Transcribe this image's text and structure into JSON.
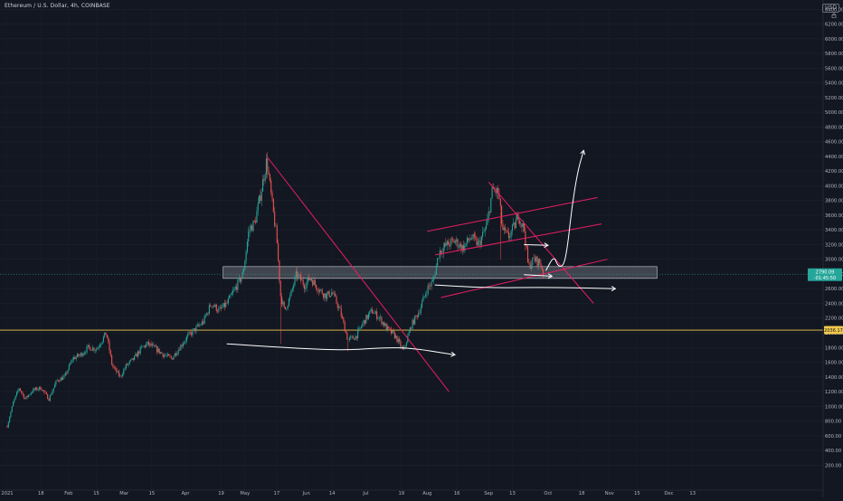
{
  "header": {
    "symbol_title": "Ethereum / U.S. Dollar, 4h, COINBASE",
    "currency": "USD"
  },
  "colors": {
    "background": "#131722",
    "candle_up": "#26a69a",
    "candle_down": "#ef5350",
    "trendline": "#e91e63",
    "support_line": "#f2c94c",
    "drawing": "#ffffff",
    "zone_fill": "#9598a1",
    "price_badge": "#26a69a"
  },
  "price_labels": {
    "last_price": "2790.09",
    "countdown": "-01:45:50",
    "support_price": "2036.17"
  },
  "chart_data": {
    "type": "candlestick",
    "title": "Ethereum / U.S. Dollar, 4h, COINBASE",
    "ylim": [
      0,
      6600
    ],
    "y_ticks": [
      200,
      400,
      600,
      800,
      1000,
      1200,
      1400,
      1600,
      1800,
      2000,
      2200,
      2400,
      2600,
      2800,
      3000,
      3200,
      3400,
      3600,
      3800,
      4000,
      4200,
      4400,
      4600,
      4800,
      5000,
      5200,
      5400,
      5600,
      5800,
      6000,
      6200,
      6400
    ],
    "y_tick_labels": [
      "200.00",
      "400.00",
      "600.00",
      "800.00",
      "1000.00",
      "1200.00",
      "1400.00",
      "1600.00",
      "1800.00",
      "2000.00",
      "2200.00",
      "2400.00",
      "2600.00",
      "2800.00",
      "3000.00",
      "3200.00",
      "3400.00",
      "3600.00",
      "3800.00",
      "4000.00",
      "4200.00",
      "4400.00",
      "4600.00",
      "4800.00",
      "5000.00",
      "5200.00",
      "5400.00",
      "5600.00",
      "5800.00",
      "6000.00",
      "6200.00",
      "6400.00"
    ],
    "x_ticks": [
      {
        "label": "2021",
        "date": "2021-01-01"
      },
      {
        "label": "18",
        "date": "2021-01-18"
      },
      {
        "label": "Feb",
        "date": "2021-02-01"
      },
      {
        "label": "15",
        "date": "2021-02-15"
      },
      {
        "label": "Mar",
        "date": "2021-03-01"
      },
      {
        "label": "15",
        "date": "2021-03-15"
      },
      {
        "label": "Apr",
        "date": "2021-04-01"
      },
      {
        "label": "19",
        "date": "2021-04-19"
      },
      {
        "label": "May",
        "date": "2021-05-01"
      },
      {
        "label": "17",
        "date": "2021-05-17"
      },
      {
        "label": "Jun",
        "date": "2021-06-01"
      },
      {
        "label": "14",
        "date": "2021-06-14"
      },
      {
        "label": "Jul",
        "date": "2021-07-01"
      },
      {
        "label": "19",
        "date": "2021-07-19"
      },
      {
        "label": "Aug",
        "date": "2021-08-01"
      },
      {
        "label": "16",
        "date": "2021-08-16"
      },
      {
        "label": "Sep",
        "date": "2021-09-01"
      },
      {
        "label": "13",
        "date": "2021-09-13"
      },
      {
        "label": "Oct",
        "date": "2021-10-01"
      },
      {
        "label": "18",
        "date": "2021-10-18"
      },
      {
        "label": "Nov",
        "date": "2021-11-01"
      },
      {
        "label": "15",
        "date": "2021-11-15"
      },
      {
        "label": "Dec",
        "date": "2021-12-01"
      },
      {
        "label": "13",
        "date": "2021-12-13"
      }
    ],
    "price_path": [
      [
        "2021-01-01",
        730
      ],
      [
        "2021-01-04",
        1050
      ],
      [
        "2021-01-07",
        1250
      ],
      [
        "2021-01-10",
        1100
      ],
      [
        "2021-01-14",
        1220
      ],
      [
        "2021-01-18",
        1250
      ],
      [
        "2021-01-22",
        1100
      ],
      [
        "2021-01-26",
        1350
      ],
      [
        "2021-01-30",
        1400
      ],
      [
        "2021-02-03",
        1650
      ],
      [
        "2021-02-07",
        1700
      ],
      [
        "2021-02-11",
        1800
      ],
      [
        "2021-02-15",
        1780
      ],
      [
        "2021-02-19",
        1950
      ],
      [
        "2021-02-20",
        2000
      ],
      [
        "2021-02-23",
        1550
      ],
      [
        "2021-02-27",
        1400
      ],
      [
        "2021-03-02",
        1550
      ],
      [
        "2021-03-06",
        1650
      ],
      [
        "2021-03-10",
        1800
      ],
      [
        "2021-03-13",
        1850
      ],
      [
        "2021-03-17",
        1780
      ],
      [
        "2021-03-21",
        1700
      ],
      [
        "2021-03-25",
        1650
      ],
      [
        "2021-03-29",
        1800
      ],
      [
        "2021-04-02",
        1950
      ],
      [
        "2021-04-06",
        2050
      ],
      [
        "2021-04-10",
        2150
      ],
      [
        "2021-04-14",
        2400
      ],
      [
        "2021-04-18",
        2300
      ],
      [
        "2021-04-22",
        2400
      ],
      [
        "2021-04-26",
        2600
      ],
      [
        "2021-04-30",
        2800
      ],
      [
        "2021-05-03",
        3400
      ],
      [
        "2021-05-06",
        3500
      ],
      [
        "2021-05-09",
        3900
      ],
      [
        "2021-05-12",
        4350
      ],
      [
        "2021-05-15",
        3700
      ],
      [
        "2021-05-17",
        3300
      ],
      [
        "2021-05-19",
        2500
      ],
      [
        "2021-05-21",
        2300
      ],
      [
        "2021-05-24",
        2500
      ],
      [
        "2021-05-27",
        2800
      ],
      [
        "2021-05-31",
        2650
      ],
      [
        "2021-06-03",
        2750
      ],
      [
        "2021-06-07",
        2600
      ],
      [
        "2021-06-11",
        2500
      ],
      [
        "2021-06-14",
        2550
      ],
      [
        "2021-06-18",
        2300
      ],
      [
        "2021-06-22",
        1900
      ],
      [
        "2021-06-26",
        1950
      ],
      [
        "2021-06-30",
        2150
      ],
      [
        "2021-07-04",
        2300
      ],
      [
        "2021-07-08",
        2200
      ],
      [
        "2021-07-12",
        2050
      ],
      [
        "2021-07-16",
        1950
      ],
      [
        "2021-07-20",
        1750
      ],
      [
        "2021-07-24",
        2100
      ],
      [
        "2021-07-28",
        2300
      ],
      [
        "2021-08-01",
        2600
      ],
      [
        "2021-08-04",
        2700
      ],
      [
        "2021-08-07",
        3100
      ],
      [
        "2021-08-11",
        3200
      ],
      [
        "2021-08-15",
        3250
      ],
      [
        "2021-08-19",
        3150
      ],
      [
        "2021-08-23",
        3300
      ],
      [
        "2021-08-27",
        3200
      ],
      [
        "2021-08-31",
        3450
      ],
      [
        "2021-09-03",
        3950
      ],
      [
        "2021-09-06",
        3900
      ],
      [
        "2021-09-08",
        3400
      ],
      [
        "2021-09-11",
        3300
      ],
      [
        "2021-09-14",
        3450
      ],
      [
        "2021-09-16",
        3600
      ],
      [
        "2021-09-19",
        3400
      ],
      [
        "2021-09-21",
        2900
      ],
      [
        "2021-09-24",
        3000
      ],
      [
        "2021-09-27",
        2950
      ],
      [
        "2021-09-29",
        2800
      ]
    ]
  },
  "annotations": {
    "zone": {
      "from": "2021-04-20",
      "to": "2021-11-25",
      "low": 2740,
      "high": 2900
    },
    "support_level": 2036.17,
    "pink_lines": [
      {
        "from": [
          "2021-05-12",
          4400
        ],
        "to": [
          "2021-08-12",
          1200
        ]
      },
      {
        "from": [
          "2021-09-01",
          4050
        ],
        "to": [
          "2021-10-24",
          2400
        ]
      },
      {
        "from": [
          "2021-08-01",
          3380
        ],
        "to": [
          "2021-10-26",
          3840
        ]
      },
      {
        "from": [
          "2021-08-05",
          3060
        ],
        "to": [
          "2021-10-28",
          3480
        ]
      },
      {
        "from": [
          "2021-08-08",
          2480
        ],
        "to": [
          "2021-10-31",
          3000
        ]
      }
    ],
    "white_paths": [
      [
        [
          "2021-04-22",
          1850
        ],
        [
          "2021-05-20",
          1800
        ],
        [
          "2021-06-20",
          1760
        ],
        [
          "2021-07-10",
          1800
        ],
        [
          "2021-07-25",
          1790
        ],
        [
          "2021-08-15",
          1700
        ]
      ],
      [
        [
          "2021-08-05",
          2650
        ],
        [
          "2021-09-01",
          2610
        ],
        [
          "2021-10-01",
          2620
        ],
        [
          "2021-11-04",
          2600
        ]
      ],
      [
        [
          "2021-09-19",
          2790
        ],
        [
          "2021-10-03",
          2770
        ]
      ],
      [
        [
          "2021-09-19",
          3200
        ],
        [
          "2021-10-01",
          3190
        ]
      ],
      [
        [
          "2021-09-30",
          2850
        ],
        [
          "2021-10-04",
          3050
        ],
        [
          "2021-10-06",
          2900
        ],
        [
          "2021-10-09",
          2910
        ],
        [
          "2021-10-11",
          3200
        ],
        [
          "2021-10-13",
          3700
        ],
        [
          "2021-10-16",
          4200
        ],
        [
          "2021-10-19",
          4480
        ]
      ]
    ]
  }
}
